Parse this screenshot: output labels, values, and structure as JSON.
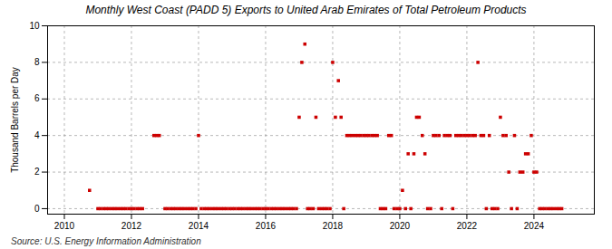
{
  "chart_data": {
    "type": "scatter",
    "title": "Monthly West Coast (PADD 5) Exports to United Arab Emirates of Total Petroleum Products",
    "ylabel": "Thousand Barrels per Day",
    "source": "Source: U.S. Energy Information Administration",
    "color": "#cc0000",
    "marker": "square",
    "grid": true,
    "xlim": [
      2009.5,
      2025.8
    ],
    "ylim": [
      -0.3,
      10.0
    ],
    "xticks": [
      2010,
      2012,
      2014,
      2016,
      2018,
      2020,
      2022,
      2024
    ],
    "yticks": [
      0,
      2,
      4,
      6,
      8,
      10
    ],
    "x": [
      2010.75,
      2011.0,
      2011.08,
      2011.17,
      2011.25,
      2011.33,
      2011.42,
      2011.5,
      2011.58,
      2011.67,
      2011.75,
      2011.83,
      2011.92,
      2012.0,
      2012.08,
      2012.17,
      2012.25,
      2012.33,
      2012.67,
      2012.75,
      2012.83,
      2013.0,
      2013.08,
      2013.17,
      2013.25,
      2013.33,
      2013.42,
      2013.5,
      2013.58,
      2013.67,
      2013.75,
      2013.83,
      2013.92,
      2014.0,
      2014.08,
      2014.17,
      2014.25,
      2014.33,
      2014.42,
      2014.5,
      2014.58,
      2014.67,
      2014.75,
      2014.83,
      2014.92,
      2015.0,
      2015.08,
      2015.17,
      2015.25,
      2015.33,
      2015.42,
      2015.5,
      2015.58,
      2015.67,
      2015.75,
      2015.83,
      2015.92,
      2016.0,
      2016.08,
      2016.17,
      2016.25,
      2016.33,
      2016.42,
      2016.5,
      2016.58,
      2016.67,
      2016.75,
      2016.83,
      2016.92,
      2017.0,
      2017.08,
      2017.17,
      2017.25,
      2017.33,
      2017.42,
      2017.5,
      2017.58,
      2017.67,
      2017.75,
      2017.83,
      2017.92,
      2018.0,
      2018.08,
      2018.17,
      2018.25,
      2018.33,
      2018.42,
      2018.5,
      2018.58,
      2018.67,
      2018.75,
      2018.83,
      2018.92,
      2019.0,
      2019.08,
      2019.17,
      2019.25,
      2019.33,
      2019.42,
      2019.5,
      2019.58,
      2019.67,
      2019.75,
      2019.83,
      2019.92,
      2020.0,
      2020.08,
      2020.17,
      2020.25,
      2020.33,
      2020.42,
      2020.5,
      2020.58,
      2020.67,
      2020.75,
      2020.83,
      2020.92,
      2021.0,
      2021.08,
      2021.17,
      2021.25,
      2021.33,
      2021.42,
      2021.5,
      2021.58,
      2021.67,
      2021.75,
      2021.83,
      2021.92,
      2022.0,
      2022.08,
      2022.17,
      2022.25,
      2022.33,
      2022.42,
      2022.5,
      2022.58,
      2022.67,
      2022.75,
      2022.83,
      2022.92,
      2023.0,
      2023.08,
      2023.17,
      2023.25,
      2023.33,
      2023.42,
      2023.5,
      2023.58,
      2023.67,
      2023.75,
      2023.83,
      2023.92,
      2024.0,
      2024.08,
      2024.17,
      2024.25,
      2024.33,
      2024.42,
      2024.5,
      2024.58,
      2024.67,
      2024.75,
      2024.83
    ],
    "values": [
      1,
      0,
      0,
      0,
      0,
      0,
      0,
      0,
      0,
      0,
      0,
      0,
      0,
      0,
      0,
      0,
      0,
      0,
      4,
      4,
      4,
      0,
      0,
      0,
      0,
      0,
      0,
      0,
      0,
      0,
      0,
      0,
      0,
      4,
      0,
      0,
      0,
      0,
      0,
      0,
      0,
      0,
      0,
      0,
      0,
      0,
      0,
      0,
      0,
      0,
      0,
      0,
      0,
      0,
      0,
      0,
      0,
      0,
      0,
      0,
      0,
      0,
      0,
      0,
      0,
      0,
      0,
      0,
      0,
      5,
      8,
      9,
      0,
      0,
      0,
      5,
      0,
      0,
      0,
      0,
      0,
      8,
      5,
      7,
      5,
      0,
      4,
      4,
      4,
      4,
      4,
      4,
      4,
      4,
      4,
      4,
      4,
      4,
      0,
      0,
      0,
      4,
      4,
      0,
      0,
      0,
      1,
      0,
      3,
      0,
      3,
      5,
      5,
      4,
      3,
      0,
      0,
      4,
      4,
      4,
      0,
      4,
      4,
      4,
      0,
      4,
      4,
      4,
      4,
      4,
      4,
      4,
      4,
      8,
      4,
      4,
      0,
      4,
      0,
      0,
      0,
      5,
      4,
      4,
      2,
      0,
      4,
      0,
      2,
      2,
      3,
      3,
      4,
      2,
      2,
      0,
      0,
      0,
      0,
      0,
      0,
      0,
      0,
      0
    ]
  }
}
